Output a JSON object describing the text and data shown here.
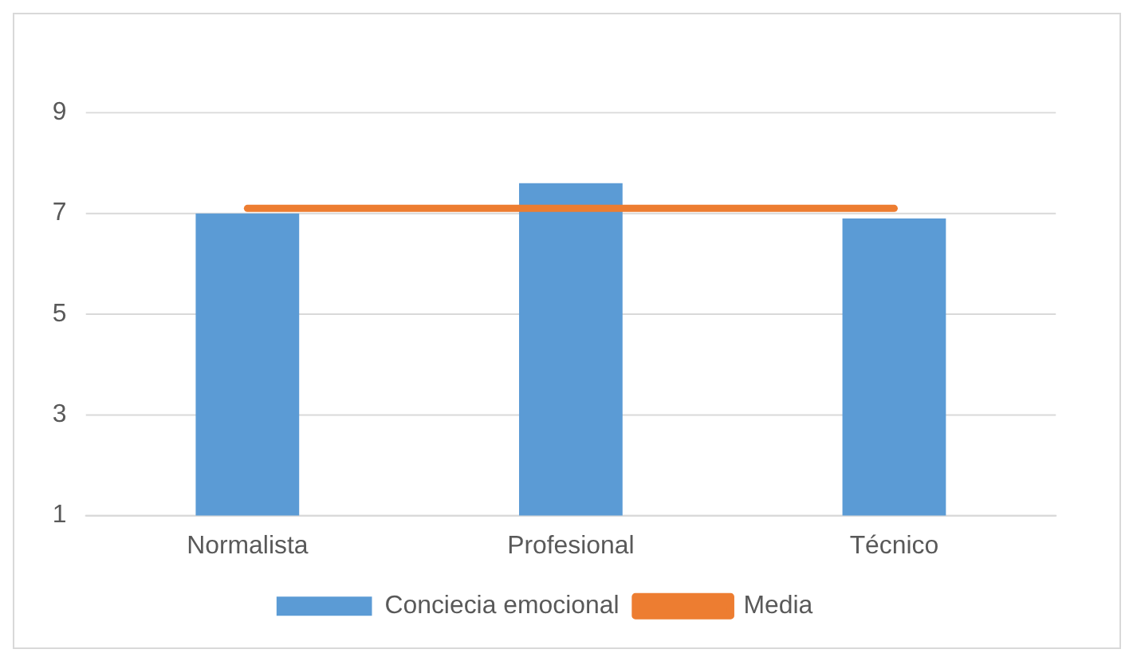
{
  "chart_data": {
    "type": "bar",
    "categories": [
      "Normalista",
      "Profesional",
      "Técnico"
    ],
    "series": [
      {
        "name": "Conciecia emocional",
        "color": "#5b9bd5",
        "values": [
          7.0,
          7.6,
          6.9
        ]
      },
      {
        "name": "Media",
        "type": "line",
        "color": "#ed7d31",
        "values": [
          7.1,
          7.1,
          7.1
        ]
      }
    ],
    "ylim": [
      1,
      9
    ],
    "yticks": [
      1,
      3,
      5,
      7,
      9
    ],
    "grid": "y",
    "legend": "bottom",
    "marker": "none",
    "line_style": "solid"
  }
}
